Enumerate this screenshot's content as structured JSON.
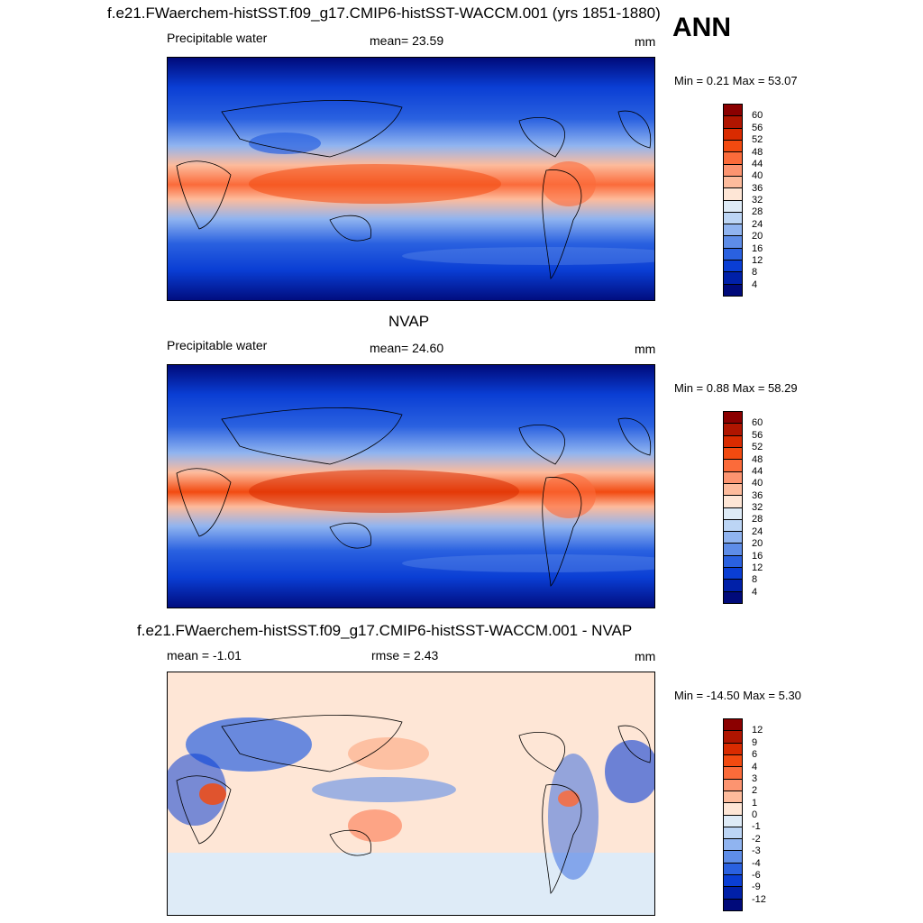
{
  "season": "ANN",
  "panels": [
    {
      "id": "model",
      "title": "f.e21.FWaerchem-histSST.f09_g17.CMIP6-histSST-WACCM.001 (yrs 1851-1880)",
      "left_label": "Precipitable water",
      "center_label": "mean=  23.59",
      "units": "mm",
      "minmax": "Min =   0.21 Max =  53.07"
    },
    {
      "id": "obs",
      "title": "NVAP",
      "left_label": "Precipitable water",
      "center_label": "mean=  24.60",
      "units": "mm",
      "minmax": "Min =   0.88 Max =  58.29"
    },
    {
      "id": "diff",
      "title": "f.e21.FWaerchem-histSST.f09_g17.CMIP6-histSST-WACCM.001 - NVAP",
      "left_label": "mean =  -1.01",
      "center_label": "rmse =   2.43",
      "units": "mm",
      "minmax": "Min = -14.50 Max =   5.30"
    }
  ],
  "colorbars": {
    "abs": {
      "labels": [
        "60",
        "56",
        "52",
        "48",
        "44",
        "40",
        "36",
        "32",
        "28",
        "24",
        "20",
        "16",
        "12",
        "8",
        "4"
      ],
      "colors": [
        "#8b0000",
        "#b01500",
        "#d92b00",
        "#f24a10",
        "#fb6b3a",
        "#fc9470",
        "#fdbb9c",
        "#fee6d6",
        "#deebf7",
        "#bcd5f5",
        "#90b4f0",
        "#5e8de8",
        "#2a61e0",
        "#0a3ed4",
        "#0020a8",
        "#000a7a"
      ]
    },
    "diff": {
      "labels": [
        "12",
        "9",
        "6",
        "4",
        "3",
        "2",
        "1",
        "0",
        "-1",
        "-2",
        "-3",
        "-4",
        "-6",
        "-9",
        "-12"
      ],
      "colors": [
        "#8b0000",
        "#b01500",
        "#d92b00",
        "#f24a10",
        "#fb6b3a",
        "#fc9470",
        "#fdbb9c",
        "#fee6d6",
        "#deebf7",
        "#bcd5f5",
        "#90b4f0",
        "#5e8de8",
        "#2a61e0",
        "#0a3ed4",
        "#0020a8",
        "#000a7a"
      ]
    }
  }
}
